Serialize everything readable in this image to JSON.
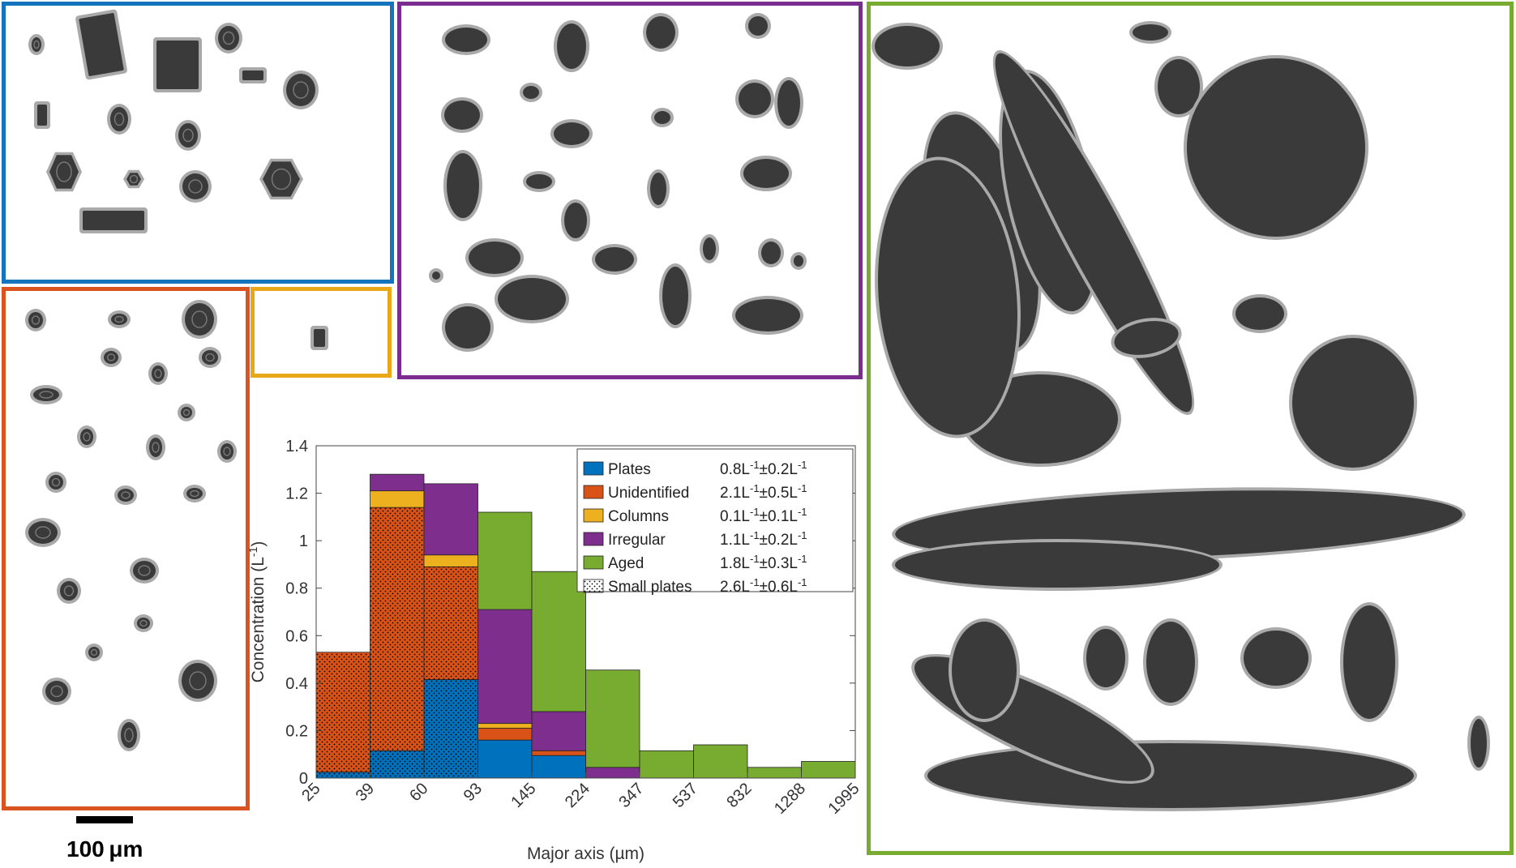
{
  "scale_bar": {
    "label": "100 μm"
  },
  "colors": {
    "plates": "#0072bd",
    "unidentified": "#d95319",
    "columns": "#edb120",
    "irregular": "#7e2f8e",
    "aged": "#77ac30",
    "crystal_fill": "#3a3a3a",
    "crystal_halo": "#a9a9a9"
  },
  "panels": [
    {
      "category": "Plates",
      "color": "#1474bd"
    },
    {
      "category": "Unidentified",
      "color": "#d9541f"
    },
    {
      "category": "Columns",
      "color": "#e8a817"
    },
    {
      "category": "Irregular",
      "color": "#7b2d8f"
    },
    {
      "category": "Aged",
      "color": "#77ac30"
    }
  ],
  "chart_data": {
    "type": "bar",
    "stacked": true,
    "xlabel": "Major axis (µm)",
    "ylabel": "Concentration",
    "ylabel_unit": "L",
    "ylabel_unit_exp": "-1",
    "ylim": [
      0,
      1.4
    ],
    "yticks": [
      "0",
      "0.2",
      "0.4",
      "0.6",
      "0.8",
      "1",
      "1.2",
      "1.4"
    ],
    "bin_edges": [
      25,
      39,
      60,
      93,
      145,
      224,
      347,
      537,
      832,
      1288,
      1995
    ],
    "xticks": [
      "25",
      "39",
      "60",
      "93",
      "145",
      "224",
      "347",
      "537",
      "832",
      "1288",
      "1995"
    ],
    "grid": false,
    "legend_position": "top-right",
    "series": [
      {
        "name": "Plates",
        "summary": "0.8L",
        "sum_unc": "0.2L",
        "color": "#0072bd",
        "values": [
          0.025,
          0.115,
          0.415,
          0.16,
          0.095,
          0,
          0,
          0,
          0,
          0
        ]
      },
      {
        "name": "Unidentified",
        "summary": "2.1L",
        "sum_unc": "0.5L",
        "color": "#d95319",
        "values": [
          0.505,
          1.025,
          0.475,
          0.05,
          0.02,
          0,
          0,
          0,
          0,
          0
        ]
      },
      {
        "name": "Columns",
        "summary": "0.1L",
        "sum_unc": "0.1L",
        "color": "#edb120",
        "values": [
          0,
          0.07,
          0.05,
          0.02,
          0,
          0,
          0,
          0,
          0,
          0
        ]
      },
      {
        "name": "Irregular",
        "summary": "1.1L",
        "sum_unc": "0.2L",
        "color": "#7e2f8e",
        "values": [
          0,
          0.07,
          0.3,
          0.48,
          0.165,
          0.045,
          0,
          0,
          0,
          0
        ]
      },
      {
        "name": "Aged",
        "summary": "1.8L",
        "sum_unc": "0.3L",
        "color": "#77ac30",
        "values": [
          0,
          0,
          0,
          0.41,
          0.59,
          0.41,
          0.115,
          0.14,
          0.045,
          0.07
        ]
      }
    ],
    "overlay": {
      "name": "Small plates",
      "summary": "2.6L",
      "sum_unc": "0.6L",
      "pattern": "dots",
      "values": [
        0.525,
        1.14,
        0.89,
        0,
        0,
        0,
        0,
        0,
        0,
        0
      ]
    }
  }
}
